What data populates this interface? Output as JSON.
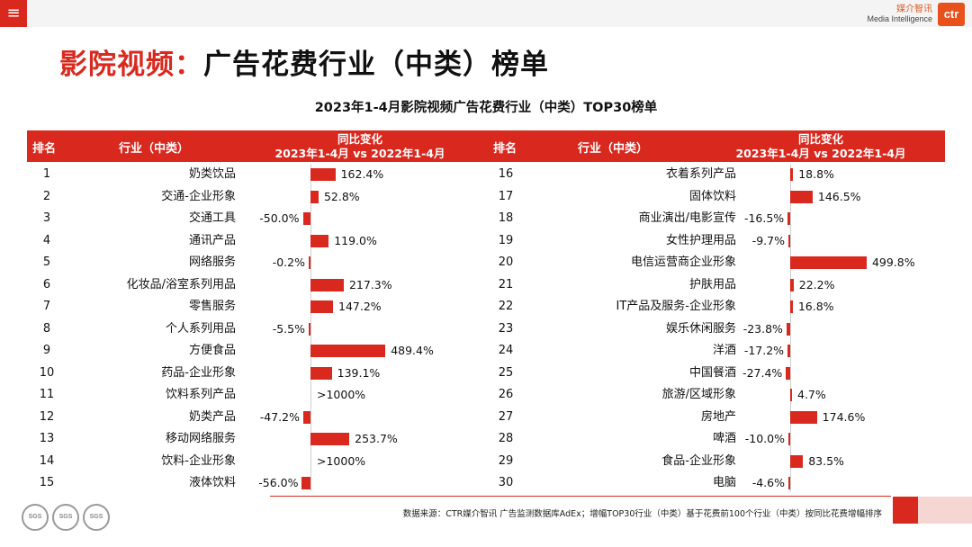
{
  "topbar": {
    "menu_icon": "≡",
    "logo_cn": "媒介智讯",
    "logo_en": "Media Intelligence",
    "logo_mark": "ctr"
  },
  "title": {
    "accent": "影院视频：",
    "main": "广告花费行业（中类）榜单"
  },
  "subtitle": "2023年1-4月影院视频广告花费行业（中类）TOP30榜单",
  "headers": {
    "rank": "排名",
    "industry": "行业（中类）",
    "change_line1": "同比变化",
    "change_line2": "2023年1-4月 vs 2022年1-4月"
  },
  "colors": {
    "accent": "#d9291f"
  },
  "left_rows": [
    {
      "rank": "1",
      "industry": "奶类饮品",
      "label": "162.4%",
      "value": 162.4
    },
    {
      "rank": "2",
      "industry": "交通-企业形象",
      "label": "52.8%",
      "value": 52.8
    },
    {
      "rank": "3",
      "industry": "交通工具",
      "label": "-50.0%",
      "value": -50.0
    },
    {
      "rank": "4",
      "industry": "通讯产品",
      "label": "119.0%",
      "value": 119.0
    },
    {
      "rank": "5",
      "industry": "网络服务",
      "label": "-0.2%",
      "value": -0.2
    },
    {
      "rank": "6",
      "industry": "化妆品/浴室系列用品",
      "label": "217.3%",
      "value": 217.3
    },
    {
      "rank": "7",
      "industry": "零售服务",
      "label": "147.2%",
      "value": 147.2
    },
    {
      "rank": "8",
      "industry": "个人系列用品",
      "label": "-5.5%",
      "value": -5.5
    },
    {
      "rank": "9",
      "industry": "方便食品",
      "label": "489.4%",
      "value": 489.4
    },
    {
      "rank": "10",
      "industry": "药品-企业形象",
      "label": "139.1%",
      "value": 139.1
    },
    {
      "rank": "11",
      "industry": "饮料系列产品",
      "label": ">1000%",
      "value": null
    },
    {
      "rank": "12",
      "industry": "奶类产品",
      "label": "-47.2%",
      "value": -47.2
    },
    {
      "rank": "13",
      "industry": "移动网络服务",
      "label": "253.7%",
      "value": 253.7
    },
    {
      "rank": "14",
      "industry": "饮料-企业形象",
      "label": ">1000%",
      "value": null
    },
    {
      "rank": "15",
      "industry": "液体饮料",
      "label": "-56.0%",
      "value": -56.0
    }
  ],
  "right_rows": [
    {
      "rank": "16",
      "industry": "衣着系列产品",
      "label": "18.8%",
      "value": 18.8
    },
    {
      "rank": "17",
      "industry": "固体饮料",
      "label": "146.5%",
      "value": 146.5
    },
    {
      "rank": "18",
      "industry": "商业演出/电影宣传",
      "label": "-16.5%",
      "value": -16.5
    },
    {
      "rank": "19",
      "industry": "女性护理用品",
      "label": "-9.7%",
      "value": -9.7
    },
    {
      "rank": "20",
      "industry": "电信运营商企业形象",
      "label": "499.8%",
      "value": 499.8
    },
    {
      "rank": "21",
      "industry": "护肤用品",
      "label": "22.2%",
      "value": 22.2
    },
    {
      "rank": "22",
      "industry": "IT产品及服务-企业形象",
      "label": "16.8%",
      "value": 16.8
    },
    {
      "rank": "23",
      "industry": "娱乐休闲服务",
      "label": "-23.8%",
      "value": -23.8
    },
    {
      "rank": "24",
      "industry": "洋酒",
      "label": "-17.2%",
      "value": -17.2
    },
    {
      "rank": "25",
      "industry": "中国餐酒",
      "label": "-27.4%",
      "value": -27.4
    },
    {
      "rank": "26",
      "industry": "旅游/区域形象",
      "label": "4.7%",
      "value": 4.7
    },
    {
      "rank": "27",
      "industry": "房地产",
      "label": "174.6%",
      "value": 174.6
    },
    {
      "rank": "28",
      "industry": "啤酒",
      "label": "-10.0%",
      "value": -10.0
    },
    {
      "rank": "29",
      "industry": "食品-企业形象",
      "label": "83.5%",
      "value": 83.5
    },
    {
      "rank": "30",
      "industry": "电脑",
      "label": "-4.6%",
      "value": -4.6
    }
  ],
  "footer": {
    "source": "数据来源：CTR媒介智讯 广告监测数据库AdEx；增幅TOP30行业（中类）基于花费前100个行业（中类）按同比花费增幅排序",
    "badges": [
      "SGS",
      "SGS",
      "SGS"
    ]
  }
}
